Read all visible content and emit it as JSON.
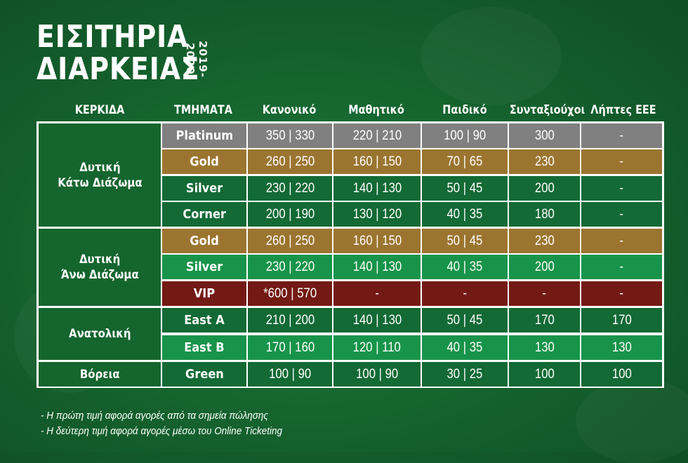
{
  "title": {
    "line1": "ΕΙΣΙΤΗΡΙΑ",
    "line2": "ΔΙΑΡΚΕΙΑΣ",
    "season": "2019-2020"
  },
  "headers": [
    "ΚΕΡΚΙΔΑ",
    "ΤΜΗΜΑΤΑ",
    "Κανονικό",
    "Μαθητικό",
    "Παιδικό",
    "Συνταξιούχοι",
    "Λήπτες ΕΕΕ"
  ],
  "colors": {
    "platinum": "#808080",
    "gold": "#9b7530",
    "green_dark": "#136a35",
    "green_light": "#18944a",
    "vip": "#741a14",
    "section": "#15652e"
  },
  "sections": [
    {
      "line1": "Δυτική",
      "line2": "Κάτω Διάζωμα"
    },
    {
      "line1": "Δυτική",
      "line2": "Άνω Διάζωμα"
    },
    {
      "line1": "Ανατολική",
      "line2": ""
    },
    {
      "line1": "Βόρεια",
      "line2": ""
    }
  ],
  "rows": [
    {
      "tier": "Platinum",
      "style": "platinum",
      "values": [
        "350 | 330",
        "220 | 210",
        "100 | 90",
        "300",
        "-"
      ]
    },
    {
      "tier": "Gold",
      "style": "gold",
      "values": [
        "260 | 250",
        "160 | 150",
        "70 | 65",
        "230",
        "-"
      ]
    },
    {
      "tier": "Silver",
      "style": "green_dark",
      "values": [
        "230 | 220",
        "140 | 130",
        "50 | 45",
        "200",
        "-"
      ]
    },
    {
      "tier": "Corner",
      "style": "green_dark",
      "values": [
        "200 | 190",
        "130 | 120",
        "40 | 35",
        "180",
        "-"
      ]
    },
    {
      "tier": "Gold",
      "style": "gold",
      "values": [
        "260 | 250",
        "160 | 150",
        "50 | 45",
        "230",
        "-"
      ]
    },
    {
      "tier": "Silver",
      "style": "green_light",
      "values": [
        "230 | 220",
        "140 | 130",
        "40 | 35",
        "200",
        "-"
      ]
    },
    {
      "tier": "VIP",
      "style": "vip",
      "values": [
        "*600 | 570",
        "-",
        "-",
        "-",
        "-"
      ]
    },
    {
      "tier": "East A",
      "style": "green_dark",
      "values": [
        "210 | 200",
        "140 | 130",
        "50 | 45",
        "170",
        "170"
      ]
    },
    {
      "tier": "East B",
      "style": "green_light",
      "values": [
        "170 | 160",
        "120 | 110",
        "40 | 35",
        "130",
        "130"
      ]
    },
    {
      "tier": "Green",
      "style": "green_dark",
      "values": [
        "100 | 90",
        "100 | 90",
        "30 | 25",
        "100",
        "100"
      ]
    }
  ],
  "notes": [
    "- Η πρώτη τιμή αφορά αγορές από τα σημεία πώλησης",
    "- Η δεύτερη τιμή αφορά αγορές μέσω του Online Ticketing"
  ]
}
